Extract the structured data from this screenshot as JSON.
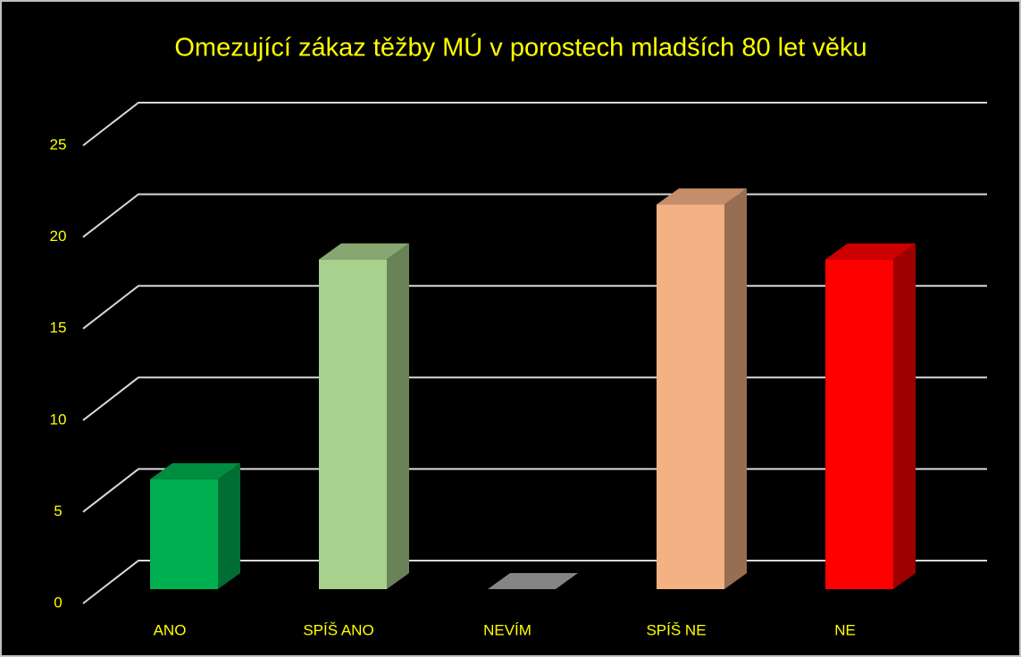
{
  "chart_data": {
    "type": "bar3d",
    "title": "Omezující zákaz těžby MÚ v porostech mladších 80 let věku",
    "categories": [
      "ANO",
      "SPÍŠ ANO",
      "NEVÍM",
      "SPÍŠ NE",
      "NE"
    ],
    "values": [
      6,
      18,
      0,
      21,
      18
    ],
    "colors": [
      "#00b050",
      "#a9d18e",
      "#a6a6a6",
      "#f4b183",
      "#ff0000"
    ],
    "ylim": [
      0,
      25
    ],
    "yticks": [
      0,
      5,
      10,
      15,
      20,
      25
    ],
    "grid": true
  }
}
